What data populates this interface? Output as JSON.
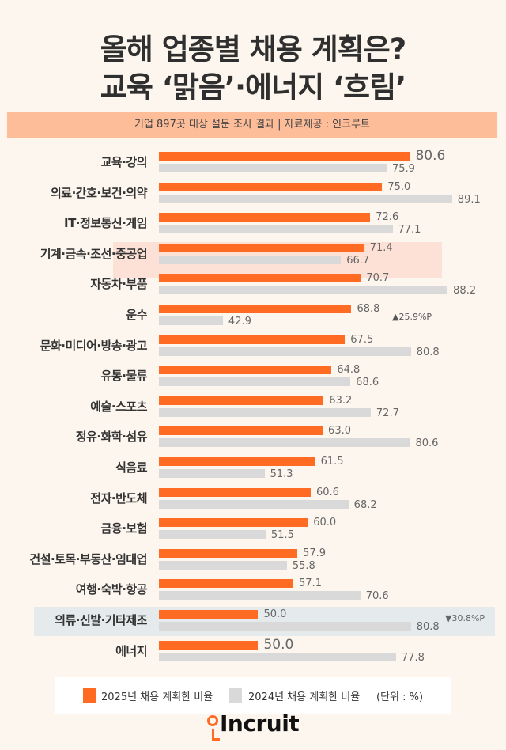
{
  "title_line1": "올해 업종별 채용 계획은?",
  "title_line2": "교육 ‘맑음’·에너지 ‘흐림’",
  "subtitle": "기업 897곳 대상 설문 조사 결과 | 자료제공 : 인크루트",
  "colors": {
    "series_2025": "#ff6b23",
    "series_2024": "#d9d9d9",
    "highlight_up": "#fde0d6",
    "highlight_down": "#e5eaed",
    "background": "#fdf6ee",
    "banner": "#fdbd98"
  },
  "chart_data": {
    "type": "bar",
    "orientation": "horizontal",
    "xlim": [
      30,
      92
    ],
    "grid": false,
    "legend_placement": "bottom",
    "unit": "(단위 : %)",
    "categories": [
      "교육·강의",
      "의료·간호·보건·의약",
      "IT·정보통신·게임",
      "기계·금속·조선·중공업",
      "자동차·부품",
      "운수",
      "문화·미디어·방송·광고",
      "유통·물류",
      "예술·스포츠",
      "정유·화학·섬유",
      "식음료",
      "전자·반도체",
      "금융·보험",
      "건설·토목·부동산·임대업",
      "여행·숙박·항공",
      "의류·신발·기타제조",
      "에너지"
    ],
    "series": [
      {
        "name": "2025년 채용 계획한 비율",
        "values": [
          80.6,
          75.0,
          72.6,
          71.4,
          70.7,
          68.8,
          67.5,
          64.8,
          63.2,
          63.0,
          61.5,
          60.6,
          60.0,
          57.9,
          57.1,
          50.0,
          50.0
        ]
      },
      {
        "name": "2024년 채용 계획한 비율",
        "values": [
          75.9,
          89.1,
          77.1,
          66.7,
          88.2,
          42.9,
          80.8,
          68.6,
          72.7,
          80.6,
          51.3,
          68.2,
          51.5,
          55.8,
          70.6,
          80.8,
          77.8
        ]
      }
    ],
    "annotations": [
      {
        "category": "운수",
        "text": "▲25.9%P",
        "direction": "up"
      },
      {
        "category": "의류·신발·기타제조",
        "text": "▼30.8%P",
        "direction": "down"
      }
    ]
  },
  "logo_text": "Incruit"
}
